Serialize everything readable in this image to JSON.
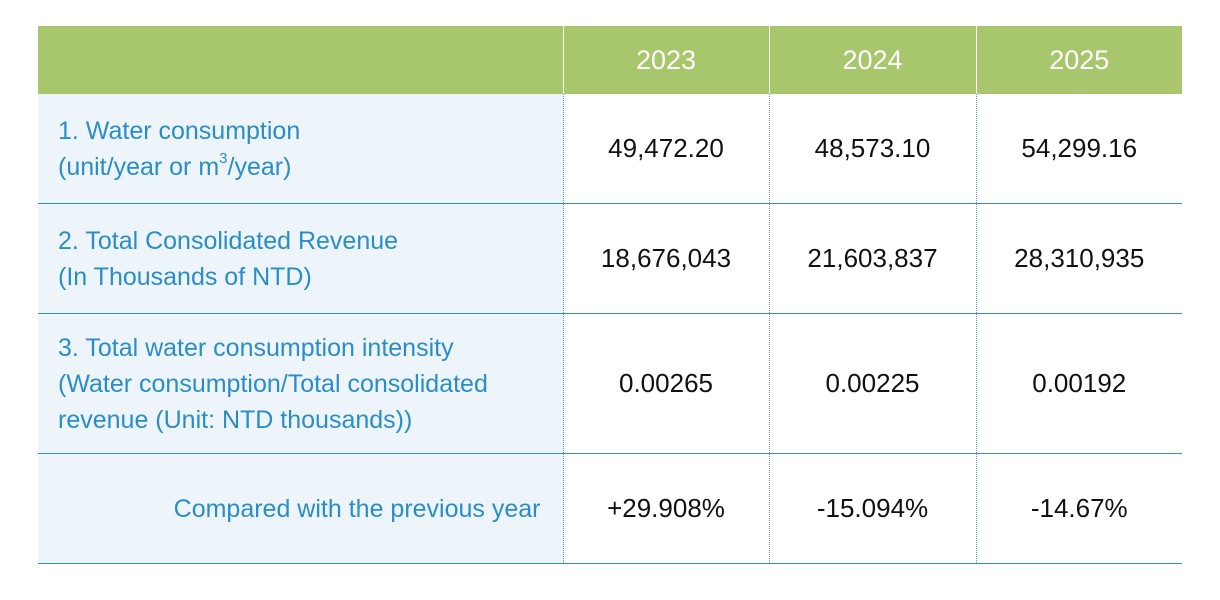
{
  "table": {
    "headers": [
      "",
      "2023",
      "2024",
      "2025"
    ],
    "rows": [
      {
        "label_line1": "1. Water consumption",
        "label_line2_pre": "(unit/year or m",
        "label_line2_sup": "3",
        "label_line2_post": "/year)",
        "values": [
          "49,472.20",
          "48,573.10",
          "54,299.16"
        ]
      },
      {
        "label_line1": "2. Total Consolidated Revenue",
        "label_line2": "(In Thousands of NTD)",
        "values": [
          "18,676,043",
          "21,603,837",
          "28,310,935"
        ]
      },
      {
        "label_line1": "3. Total water consumption intensity",
        "label_line2": "(Water consumption/Total consolidated",
        "label_line3": "revenue (Unit: NTD thousands))",
        "values": [
          "0.00265",
          "0.00225",
          "0.00192"
        ]
      },
      {
        "label_line1": "Compared with the previous year",
        "values": [
          "+29.908%",
          "-15.094%",
          "-14.67%"
        ]
      }
    ]
  },
  "colors": {
    "header_bg": "#a8c66c",
    "label_bg": "#edf5fb",
    "label_text": "#2a8dc8",
    "row_border": "#2f8fce"
  }
}
